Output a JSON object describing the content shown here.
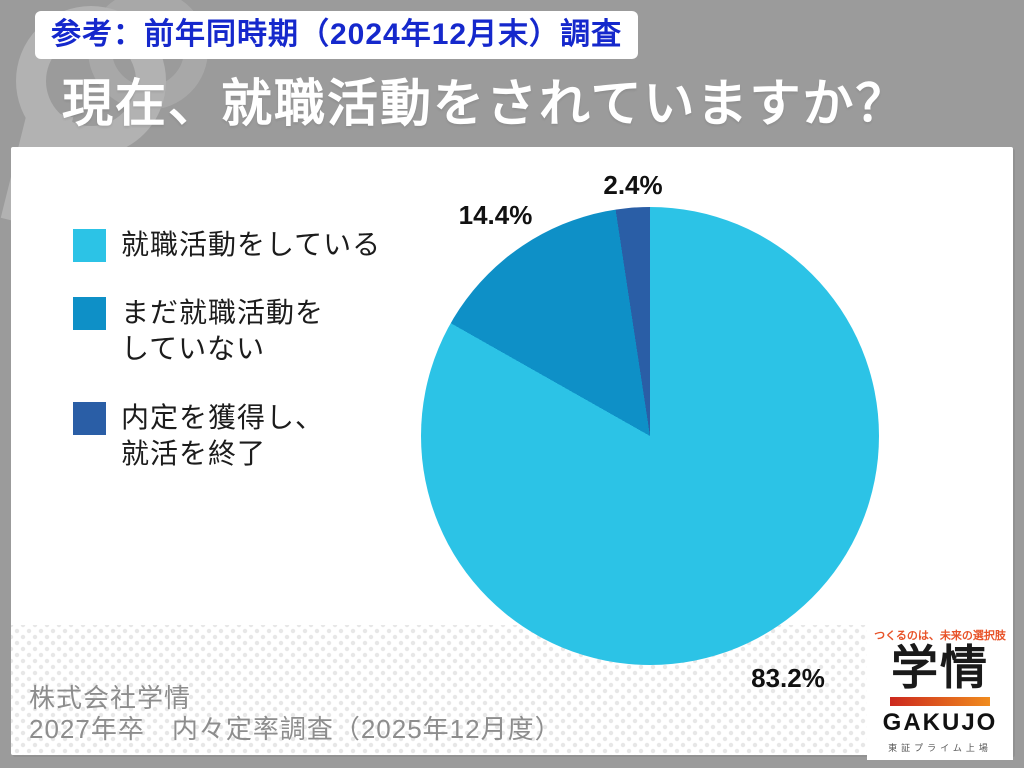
{
  "badge": {
    "label": "参考：前年同時期（2024年12月末）調査"
  },
  "header": {
    "title": "現在、就職活動をされていますか？"
  },
  "chart_data": {
    "type": "pie",
    "title": "現在、就職活動をされていますか？",
    "start": "12 o'clock, clockwise",
    "legend_position": "left",
    "slices": [
      {
        "label": "就職活動をしている",
        "value": 83.2,
        "pct_label": "83.2%",
        "color": "#2CC3E6"
      },
      {
        "label": "まだ就職活動をしていない",
        "value": 14.4,
        "pct_label": "14.4%",
        "color": "#0E90C7"
      },
      {
        "label": "内定を獲得し、就活を終了",
        "value": 2.4,
        "pct_label": "2.4%",
        "color": "#2A5EA6"
      }
    ]
  },
  "legend": {
    "items": [
      {
        "line1": "就職活動をしている",
        "line2": ""
      },
      {
        "line1": "まだ就職活動を",
        "line2": "していない"
      },
      {
        "line1": "内定を獲得し、",
        "line2": "就活を終了"
      }
    ]
  },
  "source": {
    "line1": "株式会社学情",
    "line2": "2027年卒　内々定率調査（2025年12月度）"
  },
  "logo": {
    "tagline": "つくるのは、未来の選択肢",
    "name_jp": "学情",
    "name_en": "GAKUJO",
    "listing": "東証プライム上場"
  },
  "colors": {
    "background_gray": "#9b9b9b",
    "badge_text_blue": "#1528cc",
    "title_white": "#ffffff",
    "brand_red": "#cc281e",
    "brand_orange": "#f08c1e"
  }
}
